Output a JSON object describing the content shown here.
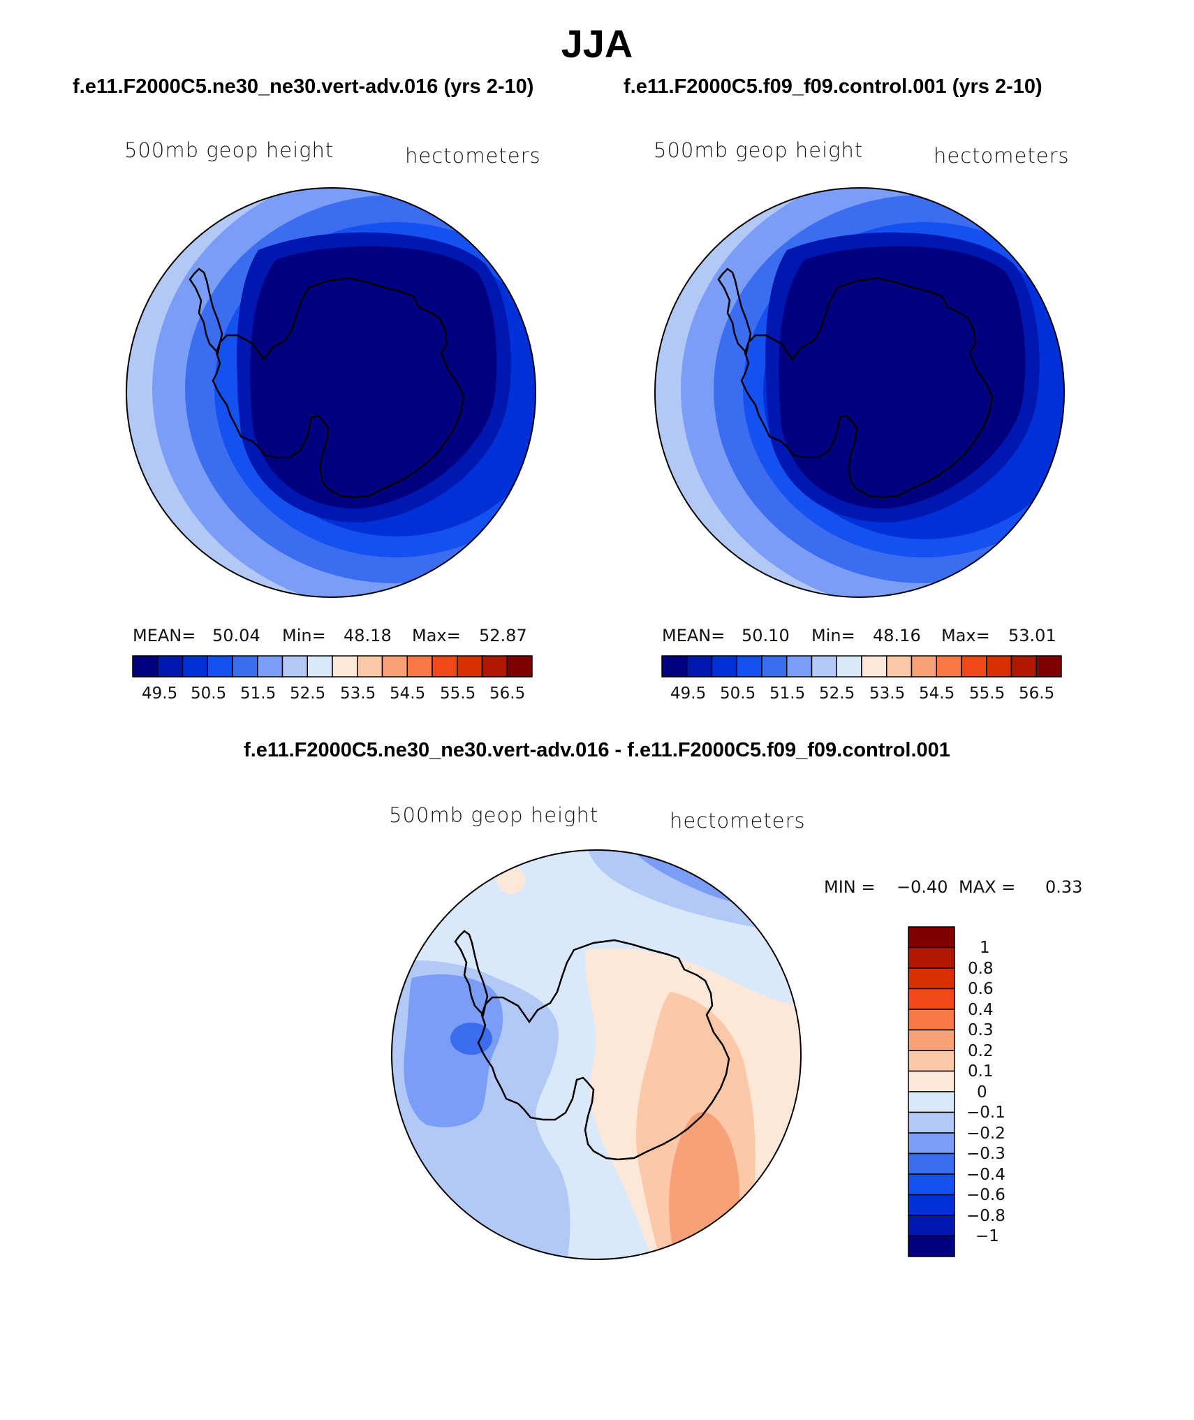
{
  "title": "JJA",
  "panels": [
    {
      "case_title": "f.e11.F2000C5.ne30_ne30.vert-adv.016 (yrs 2-10)",
      "variable_label": "500mb geop height",
      "units_label": "hectometers",
      "stats": {
        "mean_label": "MEAN=",
        "mean": "50.04",
        "min_label": "Min=",
        "min": "48.18",
        "max_label": "Max=",
        "max": "52.87"
      }
    },
    {
      "case_title": "f.e11.F2000C5.f09_f09.control.001 (yrs 2-10)",
      "variable_label": "500mb geop height",
      "units_label": "hectometers",
      "stats": {
        "mean_label": "MEAN=",
        "mean": "50.10",
        "min_label": "Min=",
        "min": "48.16",
        "max_label": "Max=",
        "max": "53.01"
      }
    }
  ],
  "abs_colorbar": {
    "colors": [
      "#000080",
      "#0018b0",
      "#0030d8",
      "#1550f0",
      "#3c6cf0",
      "#7a9ef5",
      "#b2c8f7",
      "#dae8fb",
      "#fde8d8",
      "#fcc8a8",
      "#f8a078",
      "#f87848",
      "#f04818",
      "#d83000",
      "#b01800",
      "#800000"
    ],
    "tick_labels": [
      "49.5",
      "50.5",
      "51.5",
      "52.5",
      "53.5",
      "54.5",
      "55.5",
      "56.5"
    ]
  },
  "diff": {
    "title": "f.e11.F2000C5.ne30_ne30.vert-adv.016 - f.e11.F2000C5.f09_f09.control.001",
    "variable_label": "500mb geop height",
    "units_label": "hectometers",
    "min_label": "MIN =",
    "min": "−0.40",
    "max_label": "MAX =",
    "max": "0.33",
    "colorbar_colors": [
      "#800000",
      "#b01800",
      "#d83000",
      "#f04818",
      "#f87848",
      "#f8a078",
      "#fcc8a8",
      "#fde8d8",
      "#dae8fb",
      "#b2c8f7",
      "#7a9ef5",
      "#3c6cf0",
      "#1550f0",
      "#0030d8",
      "#0018b0",
      "#000080"
    ],
    "colorbar_labels": [
      "1",
      "0.8",
      "0.6",
      "0.4",
      "0.3",
      "0.2",
      "0.1",
      "0",
      "−0.1",
      "−0.2",
      "−0.3",
      "−0.4",
      "−0.6",
      "−0.8",
      "−1"
    ]
  }
}
